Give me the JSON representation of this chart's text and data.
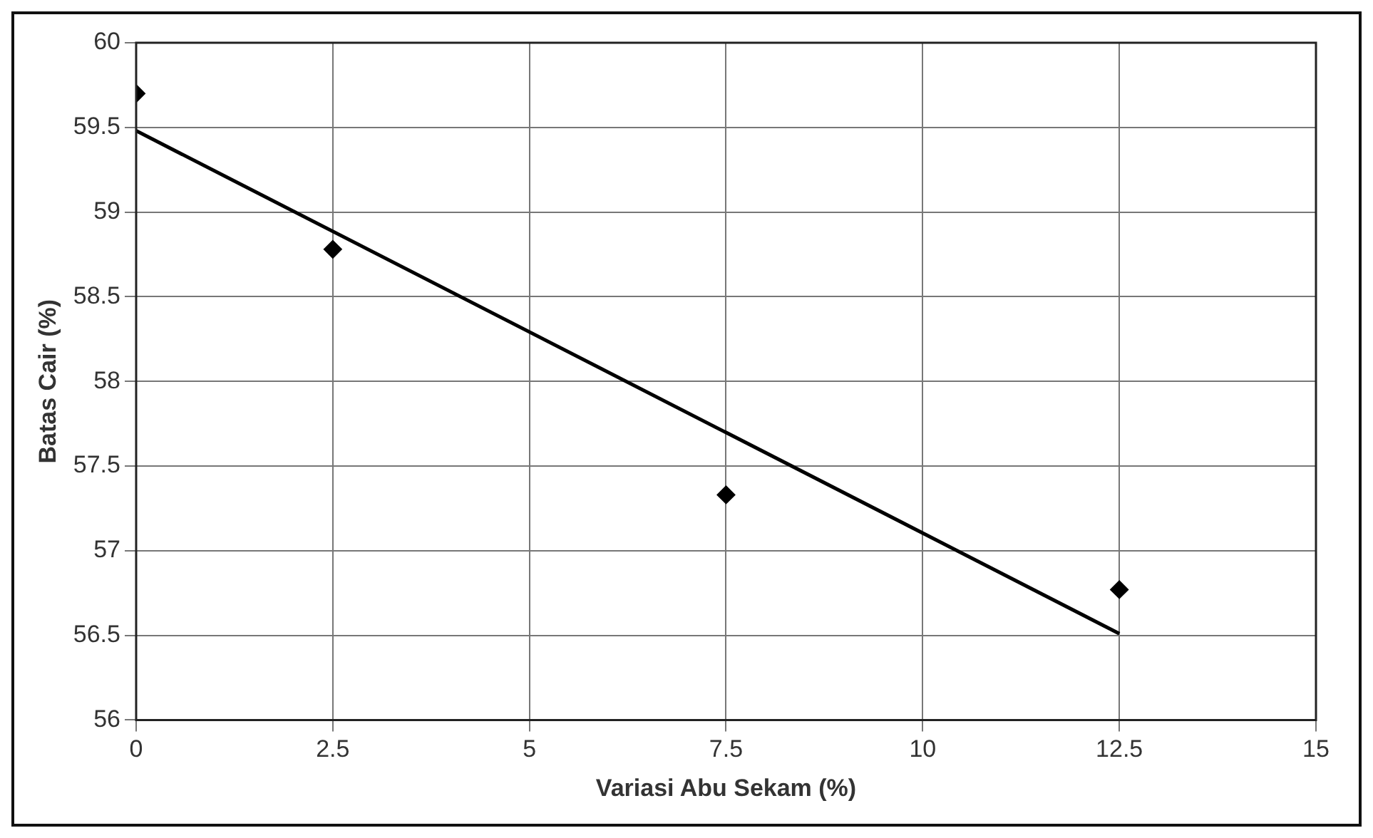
{
  "chart_data": {
    "type": "scatter",
    "xlabel": "Variasi Abu Sekam (%)",
    "ylabel": "Batas Cair (%)",
    "series": [
      {
        "type": "scatter",
        "color": "#000000",
        "marker": "diamond",
        "x": [
          0,
          2.5,
          7.5,
          12.5
        ],
        "values": [
          59.7,
          58.78,
          57.33,
          56.77
        ]
      },
      {
        "type": "line",
        "color": "#000000",
        "marker": "none",
        "x": [
          0,
          12.5
        ],
        "values": [
          59.48,
          56.51
        ]
      }
    ],
    "xlim": [
      0,
      15
    ],
    "xticks": [
      0,
      2.5,
      5,
      7.5,
      10,
      12.5,
      15
    ],
    "ylim": [
      56,
      60
    ],
    "yticks": [
      56,
      56.5,
      57,
      57.5,
      58,
      58.5,
      59,
      59.5,
      60
    ],
    "grid": true,
    "legend": false
  }
}
